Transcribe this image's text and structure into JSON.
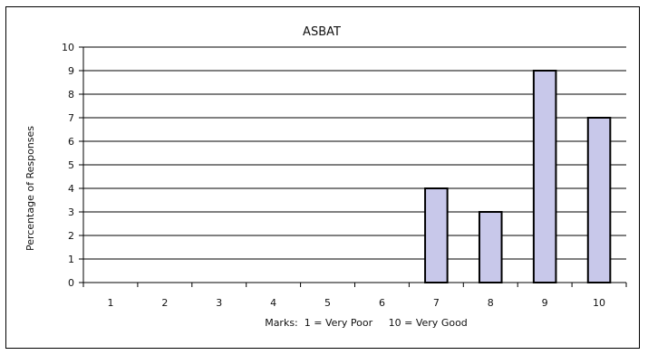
{
  "chart_data": {
    "type": "bar",
    "title": "ASBAT",
    "xlabel": "Marks:  1 = Very Poor     10 = Very Good",
    "ylabel": "Percentage of Responses",
    "categories": [
      "1",
      "2",
      "3",
      "4",
      "5",
      "6",
      "7",
      "8",
      "9",
      "10"
    ],
    "values": [
      0,
      0,
      0,
      0,
      0,
      0,
      4,
      3,
      9,
      7
    ],
    "ylim": [
      0,
      10
    ],
    "yticks": [
      0,
      1,
      2,
      3,
      4,
      5,
      6,
      7,
      8,
      9,
      10
    ],
    "grid": true,
    "legend": "none",
    "colors": {
      "bar_fill": "#c8c8ea",
      "bar_stroke": "#000000",
      "grid": "#000000"
    }
  }
}
